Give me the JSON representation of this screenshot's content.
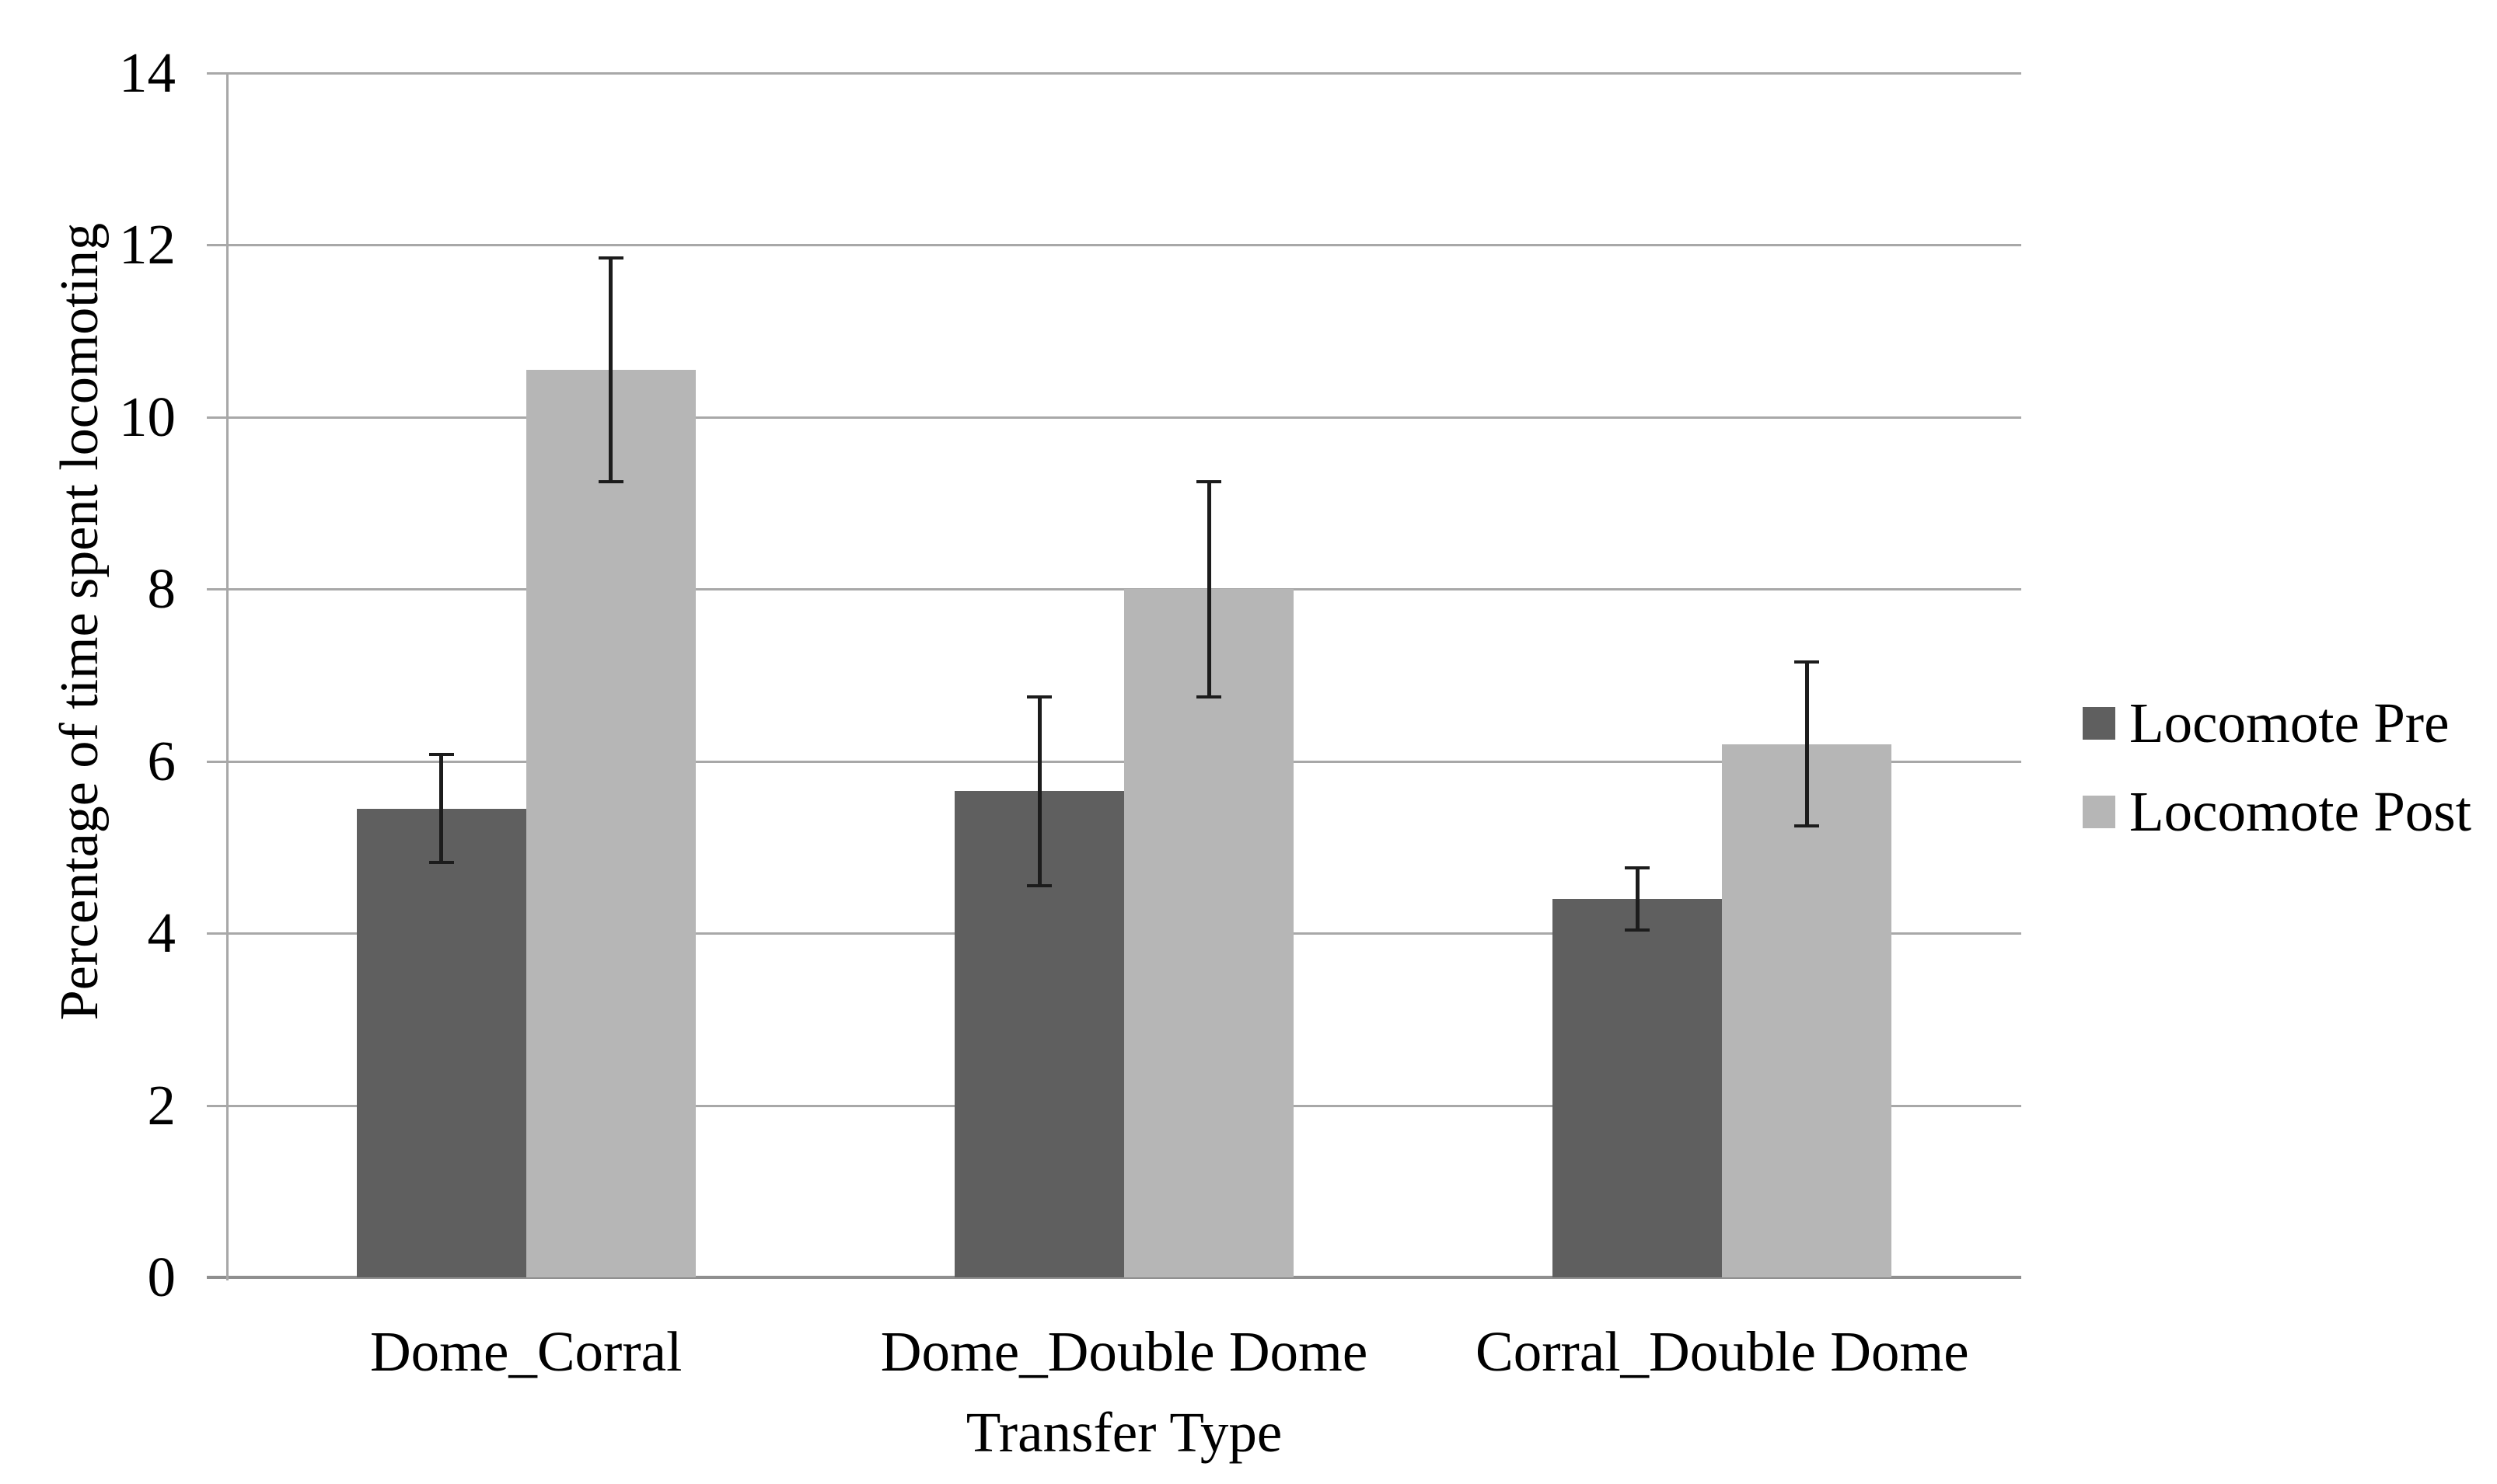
{
  "chart_data": {
    "type": "bar",
    "title": "",
    "categories": [
      "Dome_Corral",
      "Dome_Double Dome",
      "Corral_Double Dome"
    ],
    "series": [
      {
        "name": "Locomote Pre",
        "color": "#5f5f5f",
        "values": [
          5.45,
          5.65,
          4.4
        ],
        "errors": [
          0.63,
          1.1,
          0.36
        ]
      },
      {
        "name": "Locomote Post",
        "color": "#b6b6b6",
        "values": [
          10.55,
          8.0,
          6.2
        ],
        "errors": [
          1.3,
          1.25,
          0.95
        ]
      }
    ],
    "xlabel": "Transfer Type",
    "ylabel": "Percentage of time spent locomoting",
    "ylim": [
      0,
      14
    ],
    "yticks": [
      0,
      2,
      4,
      6,
      8,
      10,
      12,
      14
    ],
    "grid": "horizontal",
    "legend_position": "right",
    "error_bars": true
  },
  "colors": {
    "grid": "#a8a8a8",
    "axis": "#8f8f8f",
    "error_bar": "#1c1c1c",
    "text": "#000000",
    "background": "#ffffff"
  }
}
